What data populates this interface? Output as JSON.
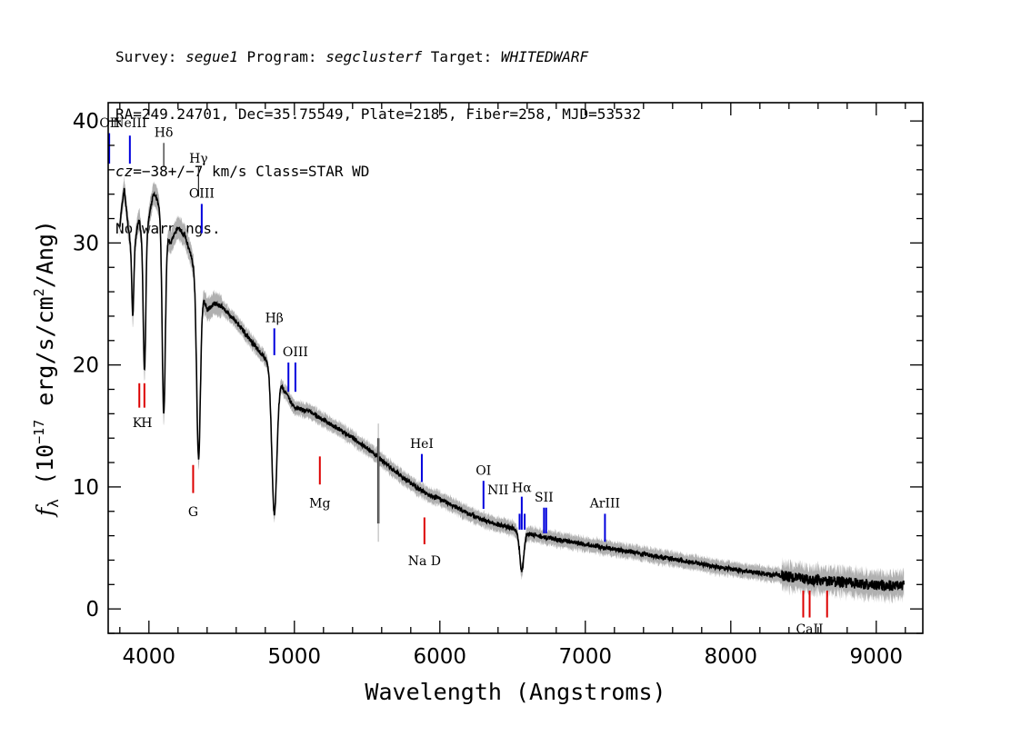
{
  "header": {
    "line1": {
      "survey_label": "Survey: ",
      "survey": "segue1",
      "program_label": " Program: ",
      "program": "segclusterf",
      "target_label": " Target: ",
      "target": "WHITEDWARF"
    },
    "line2": "RA=249.24701, Dec=35.75549, Plate=2185, Fiber=258, MJD=53532",
    "line3": {
      "cz_label": "cz",
      "cz_value": "=−38+/−7",
      "cz_rest": " km/s Class=STAR WD"
    },
    "line4": "No warnings."
  },
  "colors": {
    "emission": "#0000dd",
    "absorption": "#dd0000",
    "balmer": "#222222",
    "spectrum": "#000000",
    "error_band": "#b0b0b0"
  },
  "chart_data": {
    "type": "line",
    "title": "",
    "xlabel": "Wavelength (Angstroms)",
    "ylabel_main": "f",
    "ylabel_sub": "λ",
    "ylabel_rest": " (10",
    "ylabel_exp1": "−17",
    "ylabel_mid": " erg/s/cm",
    "ylabel_exp2": "2",
    "ylabel_end": "/Ang)",
    "xlim": [
      3720,
      9320
    ],
    "ylim": [
      -2,
      41.5
    ],
    "x_ticks": [
      {
        "value": 4000,
        "label": "4000"
      },
      {
        "value": 5000,
        "label": "5000"
      },
      {
        "value": 6000,
        "label": "6000"
      },
      {
        "value": 7000,
        "label": "7000"
      },
      {
        "value": 8000,
        "label": "8000"
      },
      {
        "value": 9000,
        "label": "9000"
      }
    ],
    "y_ticks": [
      {
        "value": 0,
        "label": "0"
      },
      {
        "value": 10,
        "label": "10"
      },
      {
        "value": 20,
        "label": "20"
      },
      {
        "value": 30,
        "label": "30"
      },
      {
        "value": 40,
        "label": "40"
      }
    ],
    "x_minor_step": 200,
    "y_minor_step": 2,
    "continuum": [
      [
        3800,
        31.5
      ],
      [
        3830,
        34.5
      ],
      [
        3860,
        31
      ],
      [
        3890,
        29
      ],
      [
        3930,
        32
      ],
      [
        3960,
        30
      ],
      [
        4000,
        32
      ],
      [
        4030,
        34
      ],
      [
        4060,
        33.5
      ],
      [
        4100,
        31
      ],
      [
        4150,
        30
      ],
      [
        4200,
        31.3
      ],
      [
        4250,
        30.5
      ],
      [
        4300,
        28.5
      ],
      [
        4400,
        24.5
      ],
      [
        4450,
        25
      ],
      [
        4500,
        24.8
      ],
      [
        4600,
        23.5
      ],
      [
        4700,
        22
      ],
      [
        4800,
        20.5
      ],
      [
        4900,
        18.5
      ],
      [
        5000,
        16.5
      ],
      [
        5100,
        16.2
      ],
      [
        5200,
        15.5
      ],
      [
        5300,
        14.8
      ],
      [
        5400,
        14
      ],
      [
        5500,
        13.2
      ],
      [
        5600,
        12.2
      ],
      [
        5700,
        11.2
      ],
      [
        5800,
        10.3
      ],
      [
        5900,
        9.5
      ],
      [
        6000,
        9
      ],
      [
        6100,
        8.4
      ],
      [
        6200,
        7.8
      ],
      [
        6300,
        7.3
      ],
      [
        6400,
        6.9
      ],
      [
        6500,
        6.6
      ],
      [
        6600,
        6.2
      ],
      [
        6700,
        5.9
      ],
      [
        6800,
        5.7
      ],
      [
        6900,
        5.5
      ],
      [
        7000,
        5.3
      ],
      [
        7100,
        5.1
      ],
      [
        7200,
        4.9
      ],
      [
        7300,
        4.7
      ],
      [
        7400,
        4.5
      ],
      [
        7500,
        4.3
      ],
      [
        7600,
        4.1
      ],
      [
        7700,
        3.9
      ],
      [
        7800,
        3.7
      ],
      [
        7900,
        3.45
      ],
      [
        8000,
        3.3
      ],
      [
        8100,
        3.1
      ],
      [
        8200,
        2.95
      ],
      [
        8300,
        2.8
      ],
      [
        8400,
        2.65
      ],
      [
        8500,
        2.5
      ],
      [
        8600,
        2.35
      ],
      [
        8700,
        2.25
      ],
      [
        8800,
        2.15
      ],
      [
        8900,
        2.05
      ],
      [
        9000,
        1.95
      ],
      [
        9100,
        1.9
      ],
      [
        9190,
        1.95
      ]
    ],
    "absorption_features": [
      {
        "name": "H8",
        "center": 3889,
        "depth": 5,
        "width": 10
      },
      {
        "name": "Hepsilon",
        "center": 3970,
        "depth": 11,
        "width": 12
      },
      {
        "name": "Hdelta",
        "center": 4102,
        "depth": 15,
        "width": 15
      },
      {
        "name": "Hgamma",
        "center": 4341,
        "depth": 14.5,
        "width": 18
      },
      {
        "name": "Hbeta",
        "center": 4862,
        "depth": 11.5,
        "width": 24
      },
      {
        "name": "Halpha",
        "center": 6563,
        "depth": 3.2,
        "width": 20
      }
    ],
    "spike": {
      "x": 5577,
      "low": 7,
      "high": 14
    },
    "lines": [
      {
        "label": "OII",
        "x": 3727,
        "y1": 36.5,
        "y2": 39,
        "label_y": 39.5,
        "type": "emission"
      },
      {
        "label": "NeIII",
        "x": 3869,
        "y1": 36.5,
        "y2": 38.8,
        "label_y": 39.5,
        "type": "emission"
      },
      {
        "label": "Hδ",
        "x": 4102,
        "y1": 36.2,
        "y2": 38.2,
        "label_y": 38.7,
        "type": "balmer"
      },
      {
        "label": "Hγ",
        "x": 4341,
        "y1": 33.8,
        "y2": 36.2,
        "label_y": 36.6,
        "type": "balmer"
      },
      {
        "label": "OIII",
        "x": 4363,
        "y1": 30.8,
        "y2": 33.2,
        "label_y": 33.7,
        "type": "emission"
      },
      {
        "label": "Hβ",
        "x": 4862,
        "y1": 20.8,
        "y2": 23.0,
        "label_y": 23.5,
        "type": "emission"
      },
      {
        "label": "OIII",
        "x": 4959,
        "y1": 17.8,
        "y2": 20.2,
        "label_y": 20.7,
        "type": "emission",
        "no_label": true
      },
      {
        "label": "OIII",
        "x": 5007,
        "y1": 17.8,
        "y2": 20.2,
        "label_y": 20.7,
        "type": "emission"
      },
      {
        "label": "HeI",
        "x": 5876,
        "y1": 10.4,
        "y2": 12.7,
        "label_y": 13.2,
        "type": "emission"
      },
      {
        "label": "OI",
        "x": 6300,
        "y1": 8.2,
        "y2": 10.5,
        "label_y": 11.0,
        "type": "emission"
      },
      {
        "label": "NII",
        "x": 6548,
        "y1": 6.5,
        "y2": 7.8,
        "label_y": 9.4,
        "type": "emission",
        "label_x": 6400
      },
      {
        "label": "Hα",
        "x": 6563,
        "y1": 6.5,
        "y2": 9.2,
        "label_y": 9.6,
        "type": "emission"
      },
      {
        "label": "NII",
        "x": 6583,
        "y1": 6.5,
        "y2": 7.8,
        "label_y": 8.6,
        "type": "emission",
        "label_x": 6700,
        "no_label": true
      },
      {
        "label": "SII",
        "x": 6716,
        "y1": 6.2,
        "y2": 8.3,
        "label_y": 8.8,
        "type": "emission"
      },
      {
        "label": "SII",
        "x": 6731,
        "y1": 6.2,
        "y2": 8.3,
        "label_y": 8.8,
        "type": "emission",
        "no_label": true
      },
      {
        "label": "ArIII",
        "x": 7135,
        "y1": 5.5,
        "y2": 7.8,
        "label_y": 8.3,
        "type": "emission"
      },
      {
        "label": "K",
        "x": 3934,
        "y1": 16.5,
        "y2": 18.5,
        "label_y": 14.9,
        "type": "absorption"
      },
      {
        "label": "H",
        "x": 3969,
        "y1": 16.5,
        "y2": 18.5,
        "label_y": 14.9,
        "type": "absorption"
      },
      {
        "label": "G",
        "x": 4304,
        "y1": 9.5,
        "y2": 11.8,
        "label_y": 7.6,
        "type": "absorption"
      },
      {
        "label": "Mg",
        "x": 5175,
        "y1": 10.2,
        "y2": 12.5,
        "label_y": 8.3,
        "type": "absorption"
      },
      {
        "label": "Na D",
        "x": 5894,
        "y1": 5.3,
        "y2": 7.5,
        "label_y": 3.6,
        "type": "absorption"
      },
      {
        "label": "CaII",
        "x": 8498,
        "y1": -0.7,
        "y2": 1.5,
        "label_y": -2.0,
        "type": "absorption",
        "no_label": true
      },
      {
        "label": "CaII",
        "x": 8542,
        "y1": -0.7,
        "y2": 1.5,
        "label_y": -2.0,
        "type": "absorption"
      },
      {
        "label": "CaII",
        "x": 8662,
        "y1": -0.7,
        "y2": 1.5,
        "label_y": -2.0,
        "type": "absorption",
        "no_label": true
      }
    ]
  }
}
